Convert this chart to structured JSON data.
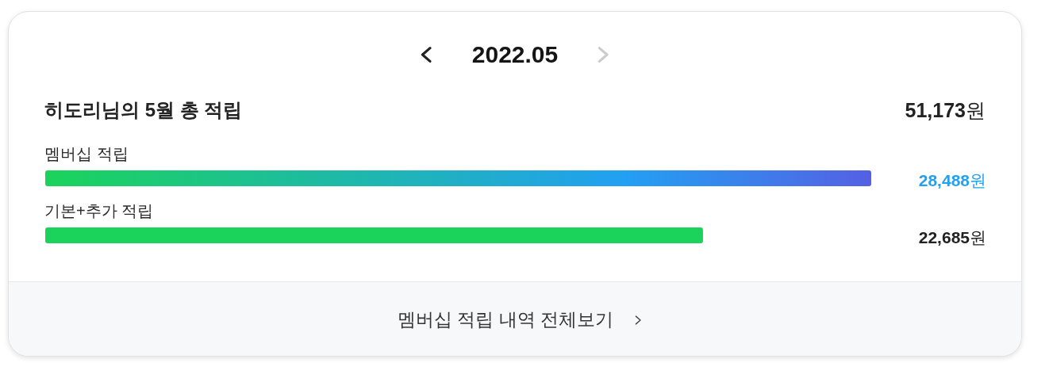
{
  "chart_data": {
    "type": "bar",
    "orientation": "horizontal",
    "title": "2022.05",
    "subtitle": "히도리님의 5월 총 적립",
    "categories": [
      "멤버십 적립",
      "기본+추가 적립"
    ],
    "values": [
      28488,
      22685
    ],
    "colors": [
      "#22a0f2",
      "#1bd35a"
    ],
    "value_labels": [
      "28,488원",
      "22,685원"
    ],
    "annotations": [
      "51,173원",
      "멤버십 적립 내역 전체보기"
    ],
    "tick_labels": "y"
  }
}
